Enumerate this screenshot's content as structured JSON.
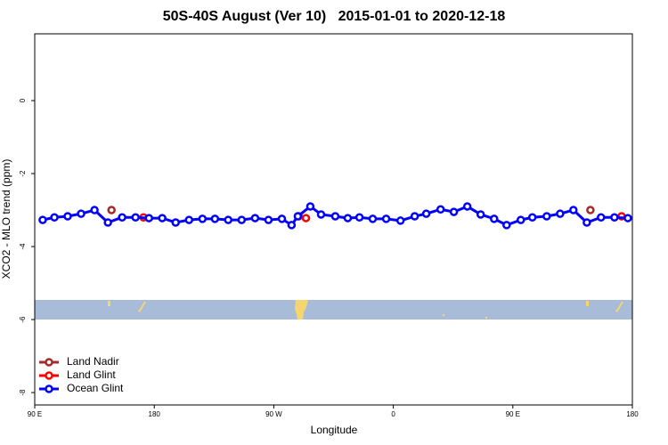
{
  "chart_data": {
    "type": "line",
    "title": "50S-40S August (Ver 10)   2015-01-01 to 2020-12-18",
    "x_label": "Longitude",
    "y_label": "XCO2 - MLO trend (ppm)",
    "xlim": [
      90,
      540
    ],
    "ylim": [
      -8.34,
      1.83
    ],
    "xticks": [
      {
        "value": 90,
        "label": "90 E"
      },
      {
        "value": 180,
        "label": "180"
      },
      {
        "value": 270,
        "label": "90 W"
      },
      {
        "value": 360,
        "label": "0"
      },
      {
        "value": 450,
        "label": "90 E"
      },
      {
        "value": 540,
        "label": "180"
      }
    ],
    "yticks": [
      0,
      -2,
      -4,
      -6,
      -8
    ],
    "legend": "bottom-left",
    "series": [
      {
        "name": "Land Nadir",
        "color": "#a52a2a",
        "line": false,
        "x": [
          147.8,
          508.4
        ],
        "values": [
          -3.0,
          -3.0
        ]
      },
      {
        "name": "Land Glint",
        "color": "#ff0000",
        "line": false,
        "x": [
          171.9,
          288.8,
          294.2,
          531.9
        ],
        "values": [
          -3.2,
          -3.17,
          -3.22,
          -3.17
        ]
      },
      {
        "name": "Ocean Glint",
        "color": "#0000ff",
        "line": true,
        "x": [
          96.0,
          104.8,
          114.8,
          124.9,
          135.0,
          145.1,
          155.8,
          165.9,
          176.0,
          186.0,
          196.1,
          206.2,
          216.3,
          225.7,
          235.7,
          245.8,
          255.9,
          266.0,
          276.1,
          283.4,
          288.1,
          297.5,
          305.6,
          316.3,
          325.7,
          334.5,
          344.5,
          354.6,
          365.4,
          376.1,
          384.8,
          395.6,
          405.6,
          415.7,
          425.8,
          435.9,
          445.3,
          456.0,
          464.7,
          475.5,
          485.6,
          495.6,
          505.7,
          516.4,
          526.5,
          536.6
        ],
        "values": [
          -3.27,
          -3.2,
          -3.17,
          -3.1,
          -3.0,
          -3.34,
          -3.2,
          -3.2,
          -3.22,
          -3.22,
          -3.34,
          -3.27,
          -3.24,
          -3.24,
          -3.27,
          -3.27,
          -3.22,
          -3.27,
          -3.24,
          -3.41,
          -3.17,
          -2.9,
          -3.12,
          -3.17,
          -3.22,
          -3.2,
          -3.24,
          -3.24,
          -3.29,
          -3.17,
          -3.1,
          -2.98,
          -3.05,
          -2.9,
          -3.12,
          -3.24,
          -3.41,
          -3.27,
          -3.2,
          -3.17,
          -3.1,
          -3.0,
          -3.34,
          -3.2,
          -3.2,
          -3.22
        ]
      }
    ]
  }
}
